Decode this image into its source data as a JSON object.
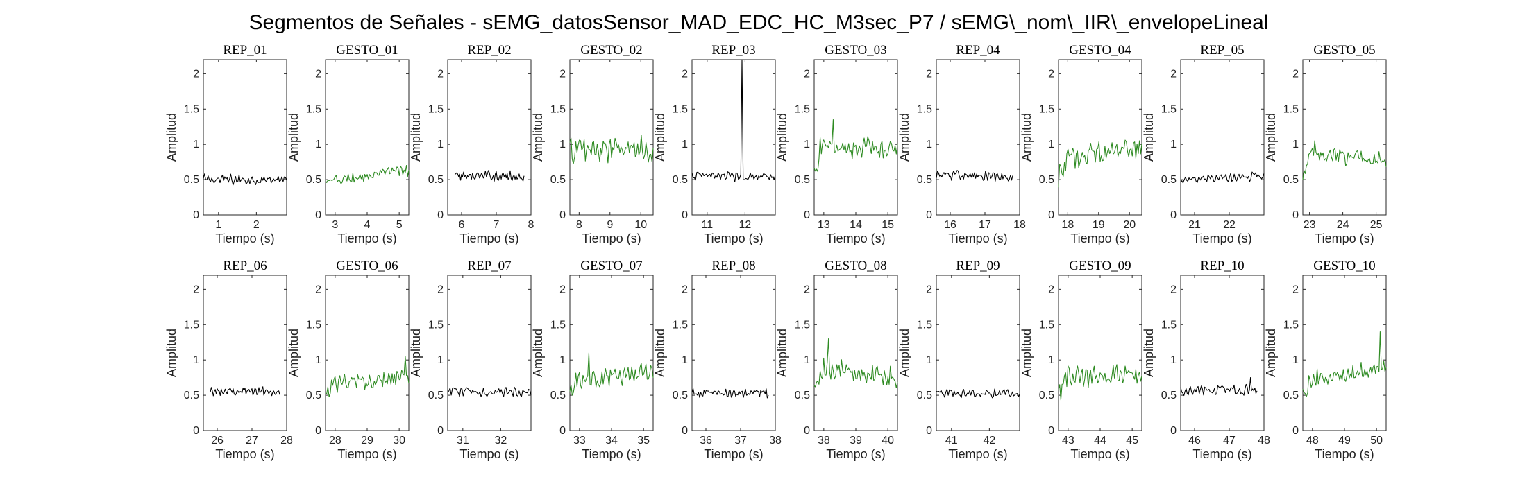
{
  "figure": {
    "title": "Segmentos de Señales - sEMG_datosSensor_MAD_EDC_HC_M3sec_P7 / sEMG\\_nom\\_IIR\\_envelopeLineal",
    "colors": {
      "rep": "#000000",
      "gesto": "#2e8b22"
    }
  },
  "chart_data": [
    {
      "type": "line",
      "title": "REP_01",
      "kind": "rep",
      "xlabel": "Tiempo (s)",
      "ylabel": "Amplitud",
      "xlim": [
        0.6,
        2.8
      ],
      "ylim": [
        0,
        2.2
      ],
      "xticks": [
        1,
        2
      ],
      "yticks": [
        0,
        0.5,
        1,
        1.5,
        2
      ],
      "x_start": 0.6,
      "x_end": 2.8,
      "level": 0.5,
      "noise": 0.06,
      "trend": 0
    },
    {
      "type": "line",
      "title": "GESTO_01",
      "kind": "gesto",
      "xlabel": "Tiempo (s)",
      "ylabel": "Amplitud",
      "xlim": [
        2.7,
        5.3
      ],
      "ylim": [
        0,
        2.2
      ],
      "xticks": [
        3,
        4,
        5
      ],
      "yticks": [
        0,
        0.5,
        1,
        1.5,
        2
      ],
      "x_start": 2.7,
      "x_end": 5.3,
      "level": 0.55,
      "noise": 0.07,
      "trend": 0.18
    },
    {
      "type": "line",
      "title": "REP_02",
      "kind": "rep",
      "xlabel": "Tiempo (s)",
      "ylabel": "Amplitud",
      "xlim": [
        5.6,
        8.0
      ],
      "ylim": [
        0,
        2.2
      ],
      "xticks": [
        6,
        7,
        8
      ],
      "yticks": [
        0,
        0.5,
        1,
        1.5,
        2
      ],
      "x_start": 5.8,
      "x_end": 7.8,
      "level": 0.55,
      "noise": 0.06,
      "trend": 0
    },
    {
      "type": "line",
      "title": "GESTO_02",
      "kind": "gesto",
      "xlabel": "Tiempo (s)",
      "ylabel": "Amplitud",
      "xlim": [
        7.7,
        10.4
      ],
      "ylim": [
        0,
        2.2
      ],
      "xticks": [
        8,
        9,
        10
      ],
      "yticks": [
        0,
        0.5,
        1,
        1.5,
        2
      ],
      "x_start": 7.7,
      "x_end": 10.4,
      "level": 0.92,
      "noise": 0.16,
      "trend": 0
    },
    {
      "type": "line",
      "title": "REP_03",
      "kind": "rep",
      "xlabel": "Tiempo (s)",
      "ylabel": "Amplitud",
      "xlim": [
        10.6,
        12.8
      ],
      "ylim": [
        0,
        2.2
      ],
      "xticks": [
        11,
        12
      ],
      "yticks": [
        0,
        0.5,
        1,
        1.5,
        2
      ],
      "x_start": 10.6,
      "x_end": 12.8,
      "level": 0.55,
      "noise": 0.06,
      "trend": 0,
      "spike": [
        11.92,
        2.2
      ]
    },
    {
      "type": "line",
      "title": "GESTO_03",
      "kind": "gesto",
      "xlabel": "Tiempo (s)",
      "ylabel": "Amplitud",
      "xlim": [
        12.7,
        15.3
      ],
      "ylim": [
        0,
        2.2
      ],
      "xticks": [
        13,
        14,
        15
      ],
      "yticks": [
        0,
        0.5,
        1,
        1.5,
        2
      ],
      "x_start": 12.7,
      "x_end": 15.3,
      "level": 0.95,
      "noise": 0.12,
      "trend": 0,
      "start_low": 0.55,
      "peak": [
        13.3,
        1.35
      ]
    },
    {
      "type": "line",
      "title": "REP_04",
      "kind": "rep",
      "xlabel": "Tiempo (s)",
      "ylabel": "Amplitud",
      "xlim": [
        15.6,
        18.0
      ],
      "ylim": [
        0,
        2.2
      ],
      "xticks": [
        16,
        17,
        18
      ],
      "yticks": [
        0,
        0.5,
        1,
        1.5,
        2
      ],
      "x_start": 15.6,
      "x_end": 17.8,
      "level": 0.55,
      "noise": 0.06,
      "trend": -0.05
    },
    {
      "type": "line",
      "title": "GESTO_04",
      "kind": "gesto",
      "xlabel": "Tiempo (s)",
      "ylabel": "Amplitud",
      "xlim": [
        17.7,
        20.4
      ],
      "ylim": [
        0,
        2.2
      ],
      "xticks": [
        18,
        19,
        20
      ],
      "yticks": [
        0,
        0.5,
        1,
        1.5,
        2
      ],
      "x_start": 17.7,
      "x_end": 20.4,
      "level": 0.85,
      "noise": 0.14,
      "trend": 0.15,
      "start_low": 0.5
    },
    {
      "type": "line",
      "title": "REP_05",
      "kind": "rep",
      "xlabel": "Tiempo (s)",
      "ylabel": "Amplitud",
      "xlim": [
        20.6,
        23.0
      ],
      "ylim": [
        0,
        2.2
      ],
      "xticks": [
        21,
        22
      ],
      "yticks": [
        0,
        0.5,
        1,
        1.5,
        2
      ],
      "x_start": 20.6,
      "x_end": 23.0,
      "level": 0.52,
      "noise": 0.05,
      "trend": 0.06
    },
    {
      "type": "line",
      "title": "GESTO_05",
      "kind": "gesto",
      "xlabel": "Tiempo (s)",
      "ylabel": "Amplitud",
      "xlim": [
        22.8,
        25.3
      ],
      "ylim": [
        0,
        2.2
      ],
      "xticks": [
        23,
        24,
        25
      ],
      "yticks": [
        0,
        0.5,
        1,
        1.5,
        2
      ],
      "x_start": 22.8,
      "x_end": 25.3,
      "level": 0.82,
      "noise": 0.1,
      "trend": -0.05,
      "start_low": 0.55,
      "peak": [
        23.15,
        1.05
      ]
    },
    {
      "type": "line",
      "title": "REP_06",
      "kind": "rep",
      "xlabel": "Tiempo (s)",
      "ylabel": "Amplitud",
      "xlim": [
        25.6,
        28.0
      ],
      "ylim": [
        0,
        2.2
      ],
      "xticks": [
        26,
        27,
        28
      ],
      "yticks": [
        0,
        0.5,
        1,
        1.5,
        2
      ],
      "x_start": 25.8,
      "x_end": 27.8,
      "level": 0.56,
      "noise": 0.05,
      "trend": 0
    },
    {
      "type": "line",
      "title": "GESTO_06",
      "kind": "gesto",
      "xlabel": "Tiempo (s)",
      "ylabel": "Amplitud",
      "xlim": [
        27.7,
        30.3
      ],
      "ylim": [
        0,
        2.2
      ],
      "xticks": [
        28,
        29,
        30
      ],
      "yticks": [
        0,
        0.5,
        1,
        1.5,
        2
      ],
      "x_start": 27.7,
      "x_end": 30.3,
      "level": 0.7,
      "noise": 0.1,
      "trend": 0.12,
      "start_low": 0.55,
      "peak": [
        30.2,
        1.05
      ]
    },
    {
      "type": "line",
      "title": "REP_07",
      "kind": "rep",
      "xlabel": "Tiempo (s)",
      "ylabel": "Amplitud",
      "xlim": [
        30.6,
        32.8
      ],
      "ylim": [
        0,
        2.2
      ],
      "xticks": [
        31,
        32
      ],
      "yticks": [
        0,
        0.5,
        1,
        1.5,
        2
      ],
      "x_start": 30.6,
      "x_end": 32.8,
      "level": 0.55,
      "noise": 0.06,
      "trend": 0
    },
    {
      "type": "line",
      "title": "GESTO_07",
      "kind": "gesto",
      "xlabel": "Tiempo (s)",
      "ylabel": "Amplitud",
      "xlim": [
        32.7,
        35.3
      ],
      "ylim": [
        0,
        2.2
      ],
      "xticks": [
        33,
        34,
        35
      ],
      "yticks": [
        0,
        0.5,
        1,
        1.5,
        2
      ],
      "x_start": 32.7,
      "x_end": 35.3,
      "level": 0.75,
      "noise": 0.11,
      "trend": 0.15,
      "start_low": 0.55,
      "peak": [
        33.3,
        1.1
      ]
    },
    {
      "type": "line",
      "title": "REP_08",
      "kind": "rep",
      "xlabel": "Tiempo (s)",
      "ylabel": "Amplitud",
      "xlim": [
        35.6,
        38.0
      ],
      "ylim": [
        0,
        2.2
      ],
      "xticks": [
        36,
        37,
        38
      ],
      "yticks": [
        0,
        0.5,
        1,
        1.5,
        2
      ],
      "x_start": 35.6,
      "x_end": 37.8,
      "level": 0.53,
      "noise": 0.05,
      "trend": 0
    },
    {
      "type": "line",
      "title": "GESTO_08",
      "kind": "gesto",
      "xlabel": "Tiempo (s)",
      "ylabel": "Amplitud",
      "xlim": [
        37.7,
        40.3
      ],
      "ylim": [
        0,
        2.2
      ],
      "xticks": [
        38,
        39,
        40
      ],
      "yticks": [
        0,
        0.5,
        1,
        1.5,
        2
      ],
      "x_start": 37.7,
      "x_end": 40.3,
      "level": 0.82,
      "noise": 0.12,
      "trend": -0.15,
      "start_low": 0.6,
      "peak": [
        38.15,
        1.3
      ]
    },
    {
      "type": "line",
      "title": "REP_09",
      "kind": "rep",
      "xlabel": "Tiempo (s)",
      "ylabel": "Amplitud",
      "xlim": [
        40.6,
        42.8
      ],
      "ylim": [
        0,
        2.2
      ],
      "xticks": [
        41,
        42
      ],
      "yticks": [
        0,
        0.5,
        1,
        1.5,
        2
      ],
      "x_start": 40.6,
      "x_end": 42.8,
      "level": 0.53,
      "noise": 0.05,
      "trend": 0
    },
    {
      "type": "line",
      "title": "GESTO_09",
      "kind": "gesto",
      "xlabel": "Tiempo (s)",
      "ylabel": "Amplitud",
      "xlim": [
        42.7,
        45.3
      ],
      "ylim": [
        0,
        2.2
      ],
      "xticks": [
        43,
        44,
        45
      ],
      "yticks": [
        0,
        0.5,
        1,
        1.5,
        2
      ],
      "x_start": 42.7,
      "x_end": 45.3,
      "level": 0.78,
      "noise": 0.12,
      "trend": 0.05,
      "start_low": 0.5
    },
    {
      "type": "line",
      "title": "REP_10",
      "kind": "rep",
      "xlabel": "Tiempo (s)",
      "ylabel": "Amplitud",
      "xlim": [
        45.6,
        48.0
      ],
      "ylim": [
        0,
        2.2
      ],
      "xticks": [
        46,
        47,
        48
      ],
      "yticks": [
        0,
        0.5,
        1,
        1.5,
        2
      ],
      "x_start": 45.6,
      "x_end": 47.8,
      "level": 0.57,
      "noise": 0.06,
      "trend": 0,
      "peak": [
        47.6,
        0.75
      ]
    },
    {
      "type": "line",
      "title": "GESTO_10",
      "kind": "gesto",
      "xlabel": "Tiempo (s)",
      "ylabel": "Amplitud",
      "xlim": [
        47.7,
        50.3
      ],
      "ylim": [
        0,
        2.2
      ],
      "xticks": [
        48,
        49,
        50
      ],
      "yticks": [
        0,
        0.5,
        1,
        1.5,
        2
      ],
      "x_start": 47.7,
      "x_end": 50.3,
      "level": 0.8,
      "noise": 0.1,
      "trend": 0.2,
      "start_low": 0.5,
      "peak": [
        50.1,
        1.4
      ]
    }
  ]
}
